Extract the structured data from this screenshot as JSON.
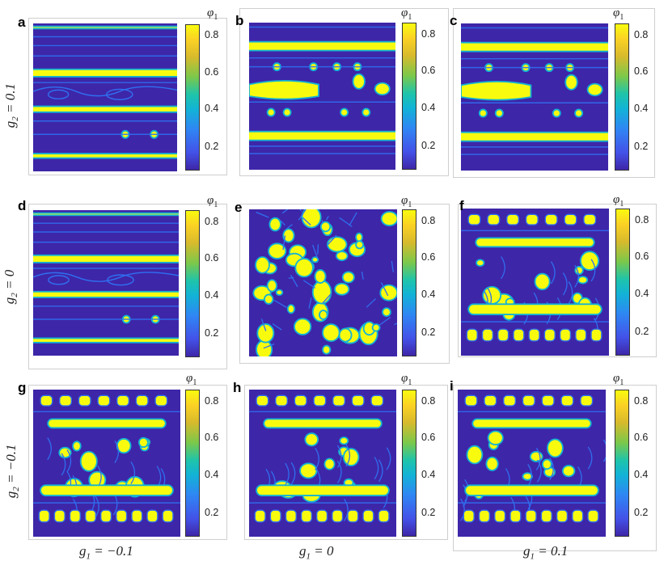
{
  "colorbar": {
    "title_symbol": "φ",
    "title_subscript": "1",
    "ticks_type_a": [
      "0.8",
      "0.6",
      "0.4",
      "0.2"
    ],
    "ticks_type_b": [
      "0.8",
      "0.6",
      "0.4",
      "0.2"
    ]
  },
  "row_labels": [
    {
      "sym": "g",
      "sub": "2",
      "rest": " = 0.1"
    },
    {
      "sym": "g",
      "sub": "2",
      "rest": " = 0"
    },
    {
      "sym": "g",
      "sub": "2",
      "rest": " = −0.1"
    }
  ],
  "column_labels": [
    {
      "sym": "g",
      "sub": "1",
      "rest": " = −0.1"
    },
    {
      "sym": "g",
      "sub": "1",
      "rest": " = 0"
    },
    {
      "sym": "g",
      "sub": "1",
      "rest": " = 0.1"
    }
  ],
  "panels": [
    {
      "label": "a",
      "pattern": "stripes"
    },
    {
      "label": "b",
      "pattern": "stripes-droplets"
    },
    {
      "label": "c",
      "pattern": "stripes-droplets"
    },
    {
      "label": "d",
      "pattern": "stripes"
    },
    {
      "label": "e",
      "pattern": "droplets"
    },
    {
      "label": "f",
      "pattern": "mixed"
    },
    {
      "label": "g",
      "pattern": "mixed"
    },
    {
      "label": "h",
      "pattern": "mixed"
    },
    {
      "label": "i",
      "pattern": "mixed"
    }
  ],
  "colors": {
    "low": "#3e26a8",
    "mid": "#12b3d6",
    "high": "#f9fb0e",
    "channel": "#2f6ff0"
  }
}
